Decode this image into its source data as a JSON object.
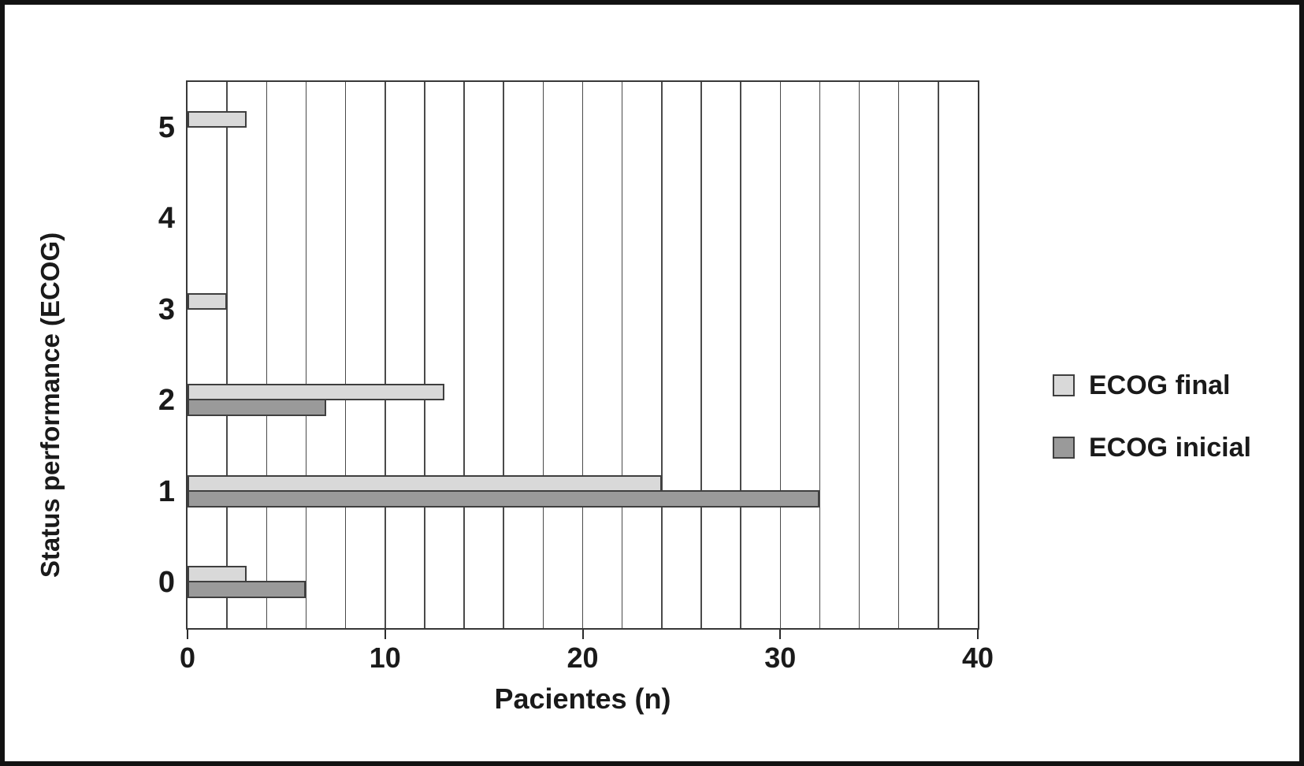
{
  "chart_data": {
    "type": "bar",
    "orientation": "horizontal",
    "title": "",
    "xlabel": "Pacientes (n)",
    "ylabel": "Status performance (ECOG)",
    "categories": [
      "5",
      "4",
      "3",
      "2",
      "1",
      "0"
    ],
    "series": [
      {
        "name": "ECOG final",
        "color": "#d9d9d9",
        "values": [
          3,
          0,
          2,
          13,
          24,
          3
        ]
      },
      {
        "name": "ECOG inicial",
        "color": "#9a9a9a",
        "values": [
          0,
          0,
          0,
          7,
          32,
          6
        ]
      }
    ],
    "xlim": [
      0,
      40
    ],
    "x_ticks": [
      "0",
      "10",
      "20",
      "30",
      "40"
    ],
    "gridline_step": 2,
    "grid": "vertical-only",
    "legend_position": "right-center",
    "background": "#ffffff",
    "frame_color": "#121212",
    "bar_border_color": "#3f3f3f",
    "gridline_color": "#4a4a4a",
    "text_color": "#1a1a1a"
  }
}
